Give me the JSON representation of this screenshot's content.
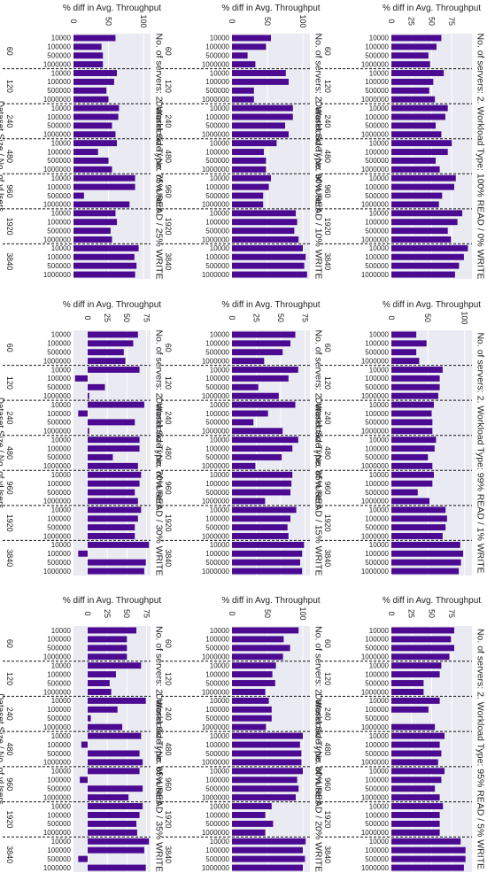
{
  "chart_data": [
    {
      "type": "bar",
      "title": "No. of servers: 2. Workload Type: 100% READ / 0% WRITE",
      "xlabel": "% diff in Avg. Throughput",
      "ylabel": "Dataset Size / No. of vUsers",
      "xticks": [
        0,
        25,
        50,
        75
      ],
      "xlim": [
        0,
        100
      ],
      "groups": [
        "60",
        "120",
        "240",
        "480",
        "960",
        "1920",
        "3840"
      ],
      "categories": [
        "10000",
        "100000",
        "500000",
        "1000000"
      ],
      "values": [
        [
          62,
          56,
          46,
          48
        ],
        [
          65,
          52,
          47,
          54
        ],
        [
          70,
          67,
          55,
          62
        ],
        [
          75,
          70,
          55,
          60
        ],
        [
          80,
          78,
          63,
          59
        ],
        [
          88,
          82,
          70,
          74
        ],
        [
          95,
          90,
          84,
          79
        ]
      ]
    },
    {
      "type": "bar",
      "title": "No. of servers: 2. Workload Type: 90% READ / 10% WRITE",
      "xlabel": "% diff in Avg. Throughput",
      "ylabel": "Dataset Size / No. of vUsers",
      "xticks": [
        0,
        50,
        100
      ],
      "xlim": [
        0,
        110
      ],
      "groups": [
        "60",
        "120",
        "240",
        "480",
        "960",
        "1920",
        "3840"
      ],
      "categories": [
        "10000",
        "100000",
        "500000",
        "1000000"
      ],
      "values": [
        [
          55,
          48,
          22,
          33
        ],
        [
          76,
          80,
          31,
          31
        ],
        [
          86,
          86,
          75,
          80
        ],
        [
          63,
          45,
          48,
          48
        ],
        [
          55,
          52,
          44,
          44
        ],
        [
          90,
          92,
          88,
          94
        ],
        [
          100,
          104,
          102,
          106
        ]
      ]
    },
    {
      "type": "bar",
      "title": "No. of servers: 2. Workload Type: 75% READ / 25% WRITE",
      "xlabel": "% diff in Avg. Throughput",
      "ylabel": "Dataset Size / No. of vUsers",
      "xticks": [
        0,
        50,
        100
      ],
      "xlim": [
        0,
        110
      ],
      "groups": [
        "60",
        "120",
        "240",
        "480",
        "960",
        "1920",
        "3840"
      ],
      "categories": [
        "10000",
        "100000",
        "500000",
        "1000000"
      ],
      "values": [
        [
          60,
          40,
          42,
          42
        ],
        [
          62,
          58,
          47,
          50
        ],
        [
          65,
          64,
          55,
          60
        ],
        [
          62,
          35,
          50,
          55
        ],
        [
          88,
          88,
          15,
          80
        ],
        [
          60,
          62,
          53,
          55
        ],
        [
          93,
          87,
          90,
          88
        ]
      ]
    },
    {
      "type": "bar",
      "title": "No. of servers: 2. Workload Type: 99% READ / 1% WRITE",
      "xlabel": "% diff in Avg. Throughput",
      "ylabel": "Dataset Size / No. of vUsers",
      "xticks": [
        0,
        50,
        100
      ],
      "xlim": [
        0,
        110
      ],
      "groups": [
        "60",
        "120",
        "240",
        "480",
        "960",
        "1920",
        "3840"
      ],
      "categories": [
        "10000",
        "100000",
        "500000",
        "1000000"
      ],
      "values": [
        [
          34,
          48,
          34,
          38
        ],
        [
          70,
          66,
          66,
          64
        ],
        [
          58,
          55,
          56,
          56
        ],
        [
          61,
          59,
          50,
          56
        ],
        [
          58,
          56,
          36,
          52
        ],
        [
          74,
          76,
          74,
          70
        ],
        [
          94,
          98,
          95,
          92
        ]
      ]
    },
    {
      "type": "bar",
      "title": "No. of servers: 2. Workload Type: 85% READ / 15% WRITE",
      "xlabel": "% diff in Avg. Throughput",
      "ylabel": "Dataset Size / No. of vUsers",
      "xticks": [
        0,
        25,
        50,
        75
      ],
      "xlim": [
        0,
        80
      ],
      "groups": [
        "60",
        "120",
        "240",
        "480",
        "960",
        "1920",
        "3840"
      ],
      "categories": [
        "10000",
        "100000",
        "500000",
        "1000000"
      ],
      "values": [
        [
          65,
          60,
          52,
          33
        ],
        [
          68,
          58,
          27,
          48
        ],
        [
          65,
          37,
          22,
          52
        ],
        [
          68,
          62,
          51,
          24
        ],
        [
          62,
          61,
          60,
          34
        ],
        [
          66,
          60,
          57,
          58
        ],
        [
          74,
          72,
          70,
          72
        ]
      ]
    },
    {
      "type": "bar",
      "title": "No. of servers: 2. Workload Type: 70% READ / 30% WRITE",
      "xlabel": "% diff in Avg. Throughput",
      "ylabel": "Dataset Size / No. of vUsers",
      "xticks": [
        0,
        25,
        50,
        75
      ],
      "xlim": [
        -18,
        80
      ],
      "groups": [
        "60",
        "120",
        "240",
        "480",
        "960",
        "1920",
        "3840"
      ],
      "categories": [
        "10000",
        "100000",
        "500000",
        "1000000"
      ],
      "values": [
        [
          64,
          58,
          46,
          48
        ],
        [
          66,
          -16,
          22,
          2
        ],
        [
          72,
          -12,
          60,
          2
        ],
        [
          66,
          66,
          32,
          64
        ],
        [
          68,
          66,
          60,
          64
        ],
        [
          68,
          64,
          60,
          60
        ],
        [
          78,
          -12,
          74,
          72
        ]
      ]
    },
    {
      "type": "bar",
      "title": "No. of servers: 2. Workload Type: 95% READ / 5% WRITE",
      "xlabel": "% diff in Avg. Throughput",
      "ylabel": "Dataset Size / No. of vUsers",
      "xticks": [
        0,
        25,
        50,
        75
      ],
      "xlim": [
        0,
        100
      ],
      "groups": [
        "60",
        "120",
        "240",
        "480",
        "960",
        "1920",
        "3840"
      ],
      "categories": [
        "10000",
        "100000",
        "500000",
        "1000000"
      ],
      "values": [
        [
          78,
          74,
          78,
          72
        ],
        [
          62,
          60,
          40,
          40
        ],
        [
          60,
          46,
          0,
          54
        ],
        [
          66,
          60,
          62,
          58
        ],
        [
          66,
          62,
          54,
          60
        ],
        [
          64,
          60,
          60,
          60
        ],
        [
          86,
          92,
          92,
          90
        ]
      ]
    },
    {
      "type": "bar",
      "title": "No. of servers: 2. Workload Type: 80% READ / 20% WRITE",
      "xlabel": "% diff in Avg. Throughput",
      "ylabel": "Dataset Size / No. of vUsers",
      "xticks": [
        0,
        50,
        100
      ],
      "xlim": [
        0,
        110
      ],
      "groups": [
        "60",
        "120",
        "240",
        "480",
        "960",
        "1920",
        "3840"
      ],
      "categories": [
        "10000",
        "100000",
        "500000",
        "1000000"
      ],
      "values": [
        [
          94,
          73,
          82,
          72
        ],
        [
          62,
          57,
          61,
          47
        ],
        [
          52,
          56,
          56,
          48
        ],
        [
          100,
          96,
          98,
          98
        ],
        [
          100,
          92,
          94,
          90
        ],
        [
          56,
          47,
          58,
          47
        ],
        [
          104,
          100,
          103,
          100
        ]
      ]
    },
    {
      "type": "bar",
      "title": "No. of servers: 2. Workload Type: 65% READ / 35% WRITE",
      "xlabel": "% diff in Avg. Throughput",
      "ylabel": "Dataset Size / No. of vUsers",
      "xticks": [
        0,
        25,
        50,
        75
      ],
      "xlim": [
        -18,
        80
      ],
      "groups": [
        "60",
        "120",
        "240",
        "480",
        "960",
        "1920",
        "3840"
      ],
      "categories": [
        "10000",
        "100000",
        "500000",
        "1000000"
      ],
      "values": [
        [
          62,
          50,
          50,
          50
        ],
        [
          68,
          36,
          28,
          30
        ],
        [
          74,
          38,
          4,
          44
        ],
        [
          68,
          -8,
          66,
          70
        ],
        [
          66,
          -10,
          70,
          52
        ],
        [
          70,
          66,
          62,
          63
        ],
        [
          78,
          72,
          -12,
          74
        ]
      ]
    }
  ]
}
